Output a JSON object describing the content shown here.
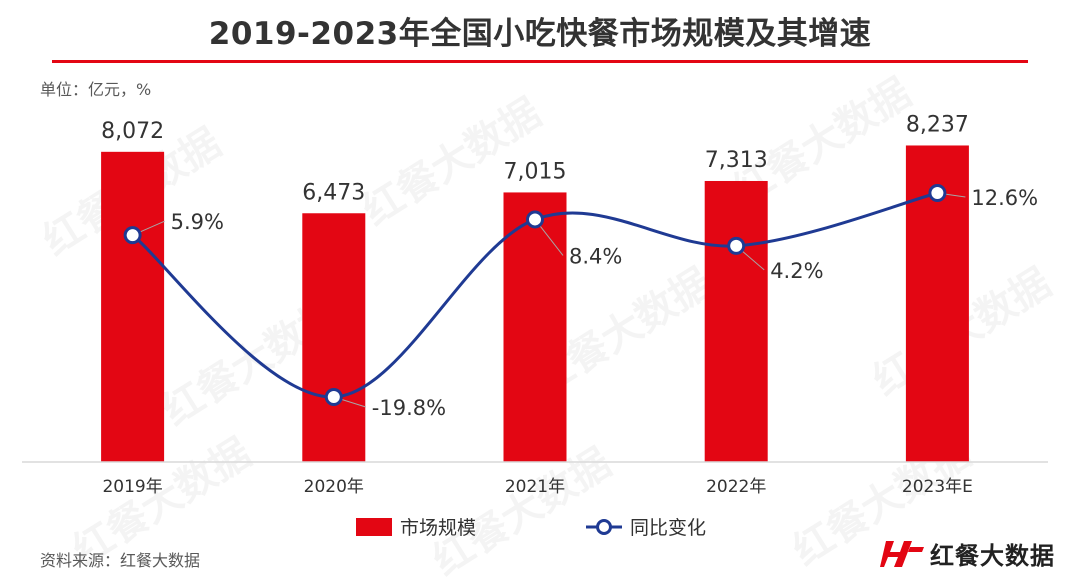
{
  "title": "2019-2023年全国小吃快餐市场规模及其增速",
  "unit_label": "单位：亿元，%",
  "source_label": "资料来源：红餐大数据",
  "brand": {
    "name": "红餐大数据",
    "logo_icon": "hc-logo-icon"
  },
  "watermark_text": "红餐大数据",
  "colors": {
    "accent": "#e30613",
    "line": "#1f3a93",
    "text": "#333333"
  },
  "chart_data": {
    "type": "bar",
    "categories": [
      "2019年",
      "2020年",
      "2021年",
      "2022年",
      "2023年E"
    ],
    "series": [
      {
        "name": "市场规模",
        "type": "bar",
        "values": [
          8072,
          6473,
          7015,
          7313,
          8237
        ],
        "labels": [
          "8,072",
          "6,473",
          "7,015",
          "7,313",
          "8,237"
        ],
        "color": "#e30613"
      },
      {
        "name": "同比变化",
        "type": "line",
        "values": [
          5.9,
          -19.8,
          8.4,
          4.2,
          12.6
        ],
        "labels": [
          "5.9%",
          "-19.8%",
          "8.4%",
          "4.2%",
          "12.6%"
        ],
        "color": "#1f3a93"
      }
    ],
    "legend_position": "bottom",
    "grid": false
  }
}
